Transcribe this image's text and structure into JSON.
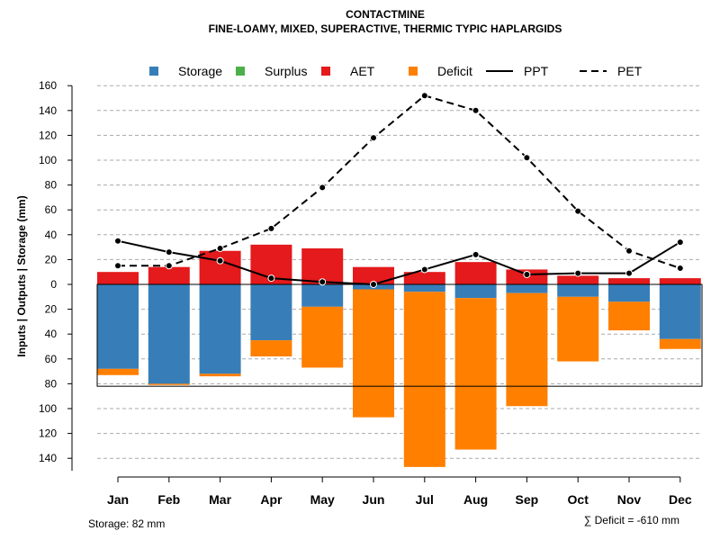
{
  "chart_data": {
    "type": "bar",
    "title": "CONTACTMINE",
    "subtitle": "FINE-LOAMY, MIXED, SUPERACTIVE, THERMIC TYPIC HAPLARGIDS",
    "ylabel": "Inputs | Outputs | Storage    (mm)",
    "xlabel": "",
    "ylim": [
      -150,
      160
    ],
    "yticks": [
      160,
      140,
      120,
      100,
      80,
      60,
      40,
      20,
      0,
      -20,
      -40,
      -60,
      -80,
      -100,
      -120,
      -140
    ],
    "ytick_labels": [
      "160",
      "140",
      "120",
      "100",
      "80",
      "60",
      "40",
      "20",
      "0",
      "20",
      "40",
      "60",
      "80",
      "100",
      "120",
      "140"
    ],
    "categories": [
      "Jan",
      "Feb",
      "Mar",
      "Apr",
      "May",
      "Jun",
      "Jul",
      "Aug",
      "Sep",
      "Oct",
      "Nov",
      "Dec"
    ],
    "grid": true,
    "legend_position": "top",
    "series": [
      {
        "name": "Storage",
        "kind": "bar-below",
        "color": "#377EB8",
        "values": [
          68,
          80,
          72,
          45,
          18,
          4,
          6,
          11,
          7,
          10,
          14,
          44
        ]
      },
      {
        "name": "Surplus",
        "kind": "bar-above",
        "color": "#4DAF4A",
        "values": [
          0,
          0,
          0,
          0,
          0,
          0,
          0,
          0,
          0,
          0,
          0,
          0
        ]
      },
      {
        "name": "AET",
        "kind": "bar-above",
        "color": "#E41A1C",
        "values": [
          10,
          14,
          27,
          32,
          29,
          14,
          10,
          18,
          12,
          7,
          5,
          5
        ]
      },
      {
        "name": "Deficit",
        "kind": "bar-below",
        "color": "#FF7F00",
        "values": [
          5,
          1,
          2,
          13,
          49,
          103,
          141,
          122,
          91,
          52,
          23,
          8
        ]
      },
      {
        "name": "PPT",
        "kind": "line",
        "style": "solid",
        "color": "#000000",
        "values": [
          35,
          26,
          19,
          5,
          2,
          0,
          12,
          24,
          8,
          9,
          9,
          34
        ]
      },
      {
        "name": "PET",
        "kind": "line",
        "style": "dashed",
        "color": "#000000",
        "values": [
          15,
          15,
          29,
          45,
          78,
          118,
          152,
          140,
          102,
          59,
          27,
          13
        ]
      }
    ],
    "storage_box_depth": 82,
    "annotations": {
      "storage": "Storage: 82 mm",
      "deficit": "∑ Deficit = -610 mm"
    }
  }
}
